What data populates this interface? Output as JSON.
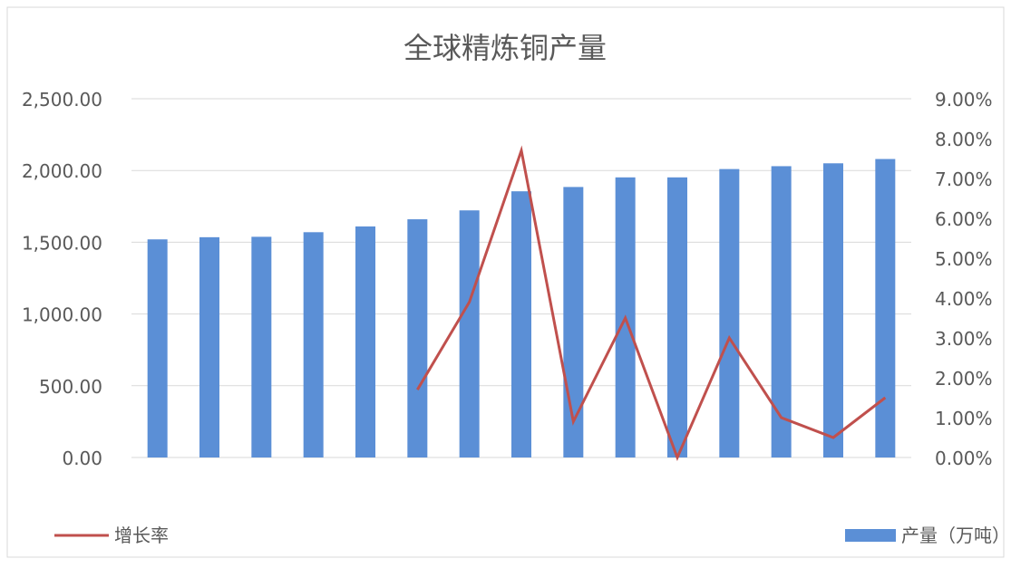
{
  "chart_data": {
    "type": "bar",
    "title": "全球精炼铜产量",
    "categories": [
      "",
      "",
      "",
      "",
      "",
      "",
      "",
      "",
      "",
      "",
      "",
      "",
      "",
      "",
      ""
    ],
    "series": [
      {
        "name": "产量（万吨）",
        "type": "bar",
        "axis": "left",
        "values": [
          1520,
          1535,
          1538,
          1570,
          1610,
          1660,
          1722,
          1855,
          1885,
          1952,
          1952,
          2010,
          2030,
          2050,
          2080
        ]
      },
      {
        "name": "增长率",
        "type": "line",
        "axis": "right",
        "values": [
          null,
          null,
          null,
          null,
          null,
          1.7,
          3.9,
          7.7,
          0.9,
          3.5,
          0.0,
          3.0,
          1.0,
          0.5,
          1.5
        ]
      }
    ],
    "y_left": {
      "ylim": [
        0,
        2500
      ],
      "ticks": [
        0,
        500,
        1000,
        1500,
        2000,
        2500
      ],
      "tick_labels": [
        "0.00",
        "500.00",
        "1,000.00",
        "1,500.00",
        "2,000.00",
        "2,500.00"
      ]
    },
    "y_right": {
      "ylim": [
        0,
        9
      ],
      "ticks": [
        0,
        1,
        2,
        3,
        4,
        5,
        6,
        7,
        8,
        9
      ],
      "tick_labels": [
        "0.00%",
        "1.00%",
        "2.00%",
        "3.00%",
        "4.00%",
        "5.00%",
        "6.00%",
        "7.00%",
        "8.00%",
        "9.00%"
      ]
    },
    "legend": {
      "position": "bottom",
      "entries": [
        "增长率",
        "产量（万吨）"
      ]
    },
    "grid": true,
    "colors": {
      "bar": "#5B8FD6",
      "line": "#C0504D"
    }
  }
}
